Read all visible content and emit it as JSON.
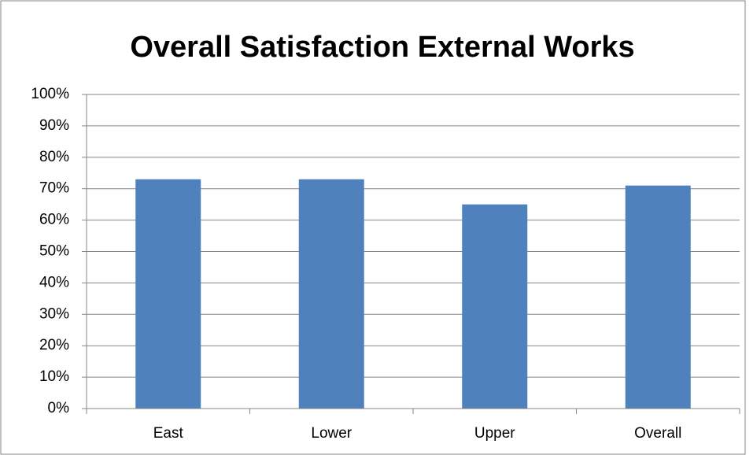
{
  "chart_data": {
    "type": "bar",
    "title": "Overall Satisfaction External Works",
    "categories": [
      "East",
      "Lower",
      "Upper",
      "Overall"
    ],
    "values": [
      73,
      73,
      65,
      71
    ],
    "color": "#4f81bd",
    "ylim": [
      0,
      100
    ],
    "yticks": [
      {
        "value": 0,
        "label": "0%"
      },
      {
        "value": 10,
        "label": "10%"
      },
      {
        "value": 20,
        "label": "20%"
      },
      {
        "value": 30,
        "label": "30%"
      },
      {
        "value": 40,
        "label": "40%"
      },
      {
        "value": 50,
        "label": "50%"
      },
      {
        "value": 60,
        "label": "60%"
      },
      {
        "value": 70,
        "label": "70%"
      },
      {
        "value": 80,
        "label": "80%"
      },
      {
        "value": 90,
        "label": "90%"
      },
      {
        "value": 100,
        "label": "100%"
      }
    ],
    "grid": true
  }
}
